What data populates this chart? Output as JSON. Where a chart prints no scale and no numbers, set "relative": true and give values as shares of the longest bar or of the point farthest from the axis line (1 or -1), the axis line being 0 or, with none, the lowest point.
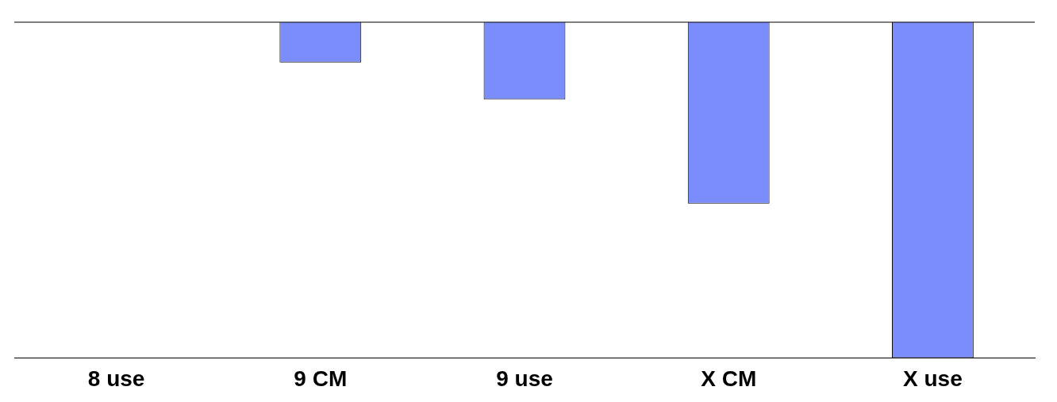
{
  "chart_data": {
    "type": "bar",
    "relative": true,
    "categories": [
      "8 use",
      "9 CM",
      "9 use",
      "X CM",
      "X use"
    ],
    "values": [
      0,
      -0.12,
      -0.23,
      -0.54,
      -1
    ],
    "color": "#7b8cfb",
    "grid": false,
    "legend": false
  }
}
